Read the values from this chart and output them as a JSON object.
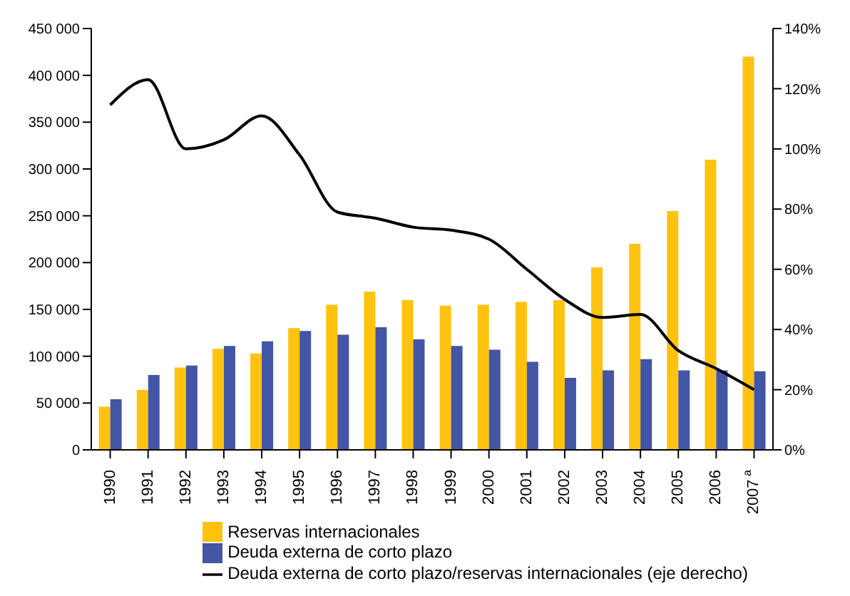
{
  "chart_data": {
    "type": "bar",
    "categories": [
      "1990",
      "1991",
      "1992",
      "1993",
      "1994",
      "1995",
      "1996",
      "1997",
      "1998",
      "1999",
      "2000",
      "2001",
      "2002",
      "2003",
      "2004",
      "2005",
      "2006",
      "2007$^{a}$"
    ],
    "series": [
      {
        "name": "Reservas internacionales",
        "color": "#ffc20e",
        "values": [
          46000,
          64000,
          88000,
          108000,
          103000,
          130000,
          155000,
          169000,
          160000,
          154000,
          155000,
          158000,
          160000,
          195000,
          220000,
          255000,
          310000,
          420000
        ]
      },
      {
        "name": "Deuda externa de corto plazo",
        "color": "#4355a5",
        "values": [
          54000,
          80000,
          90000,
          111000,
          116000,
          127000,
          123000,
          131000,
          118000,
          111000,
          107000,
          94000,
          77000,
          85000,
          97000,
          85000,
          85000,
          84000
        ]
      },
      {
        "name": "Deuda externa de corto plazo/reservas internacionales (eje derecho)",
        "type": "line",
        "axis": "y2",
        "color": "#000000",
        "values": [
          114.6,
          123,
          100,
          103,
          111,
          98,
          79,
          77,
          74,
          73,
          70,
          60,
          50,
          44,
          45,
          33,
          27,
          20
        ]
      }
    ],
    "ylim": [
      0,
      450000
    ],
    "yticks": [
      0,
      {
        "value": 50000,
        "label": "50 000"
      },
      {
        "value": 100000,
        "label": "100 000"
      },
      {
        "value": 150000,
        "label": "150 000"
      },
      {
        "value": 200000,
        "label": "200 000"
      },
      {
        "value": 250000,
        "label": "250 000"
      },
      {
        "value": 300000,
        "label": "300 000"
      },
      {
        "value": 350000,
        "label": "350 000"
      },
      {
        "value": 400000,
        "label": "400 000"
      },
      {
        "value": 450000,
        "label": "450 000"
      }
    ],
    "y2lim": [
      0,
      140
    ],
    "y2ticks": [
      {
        "value": 0,
        "label": "0%"
      },
      {
        "value": 20,
        "label": "20%"
      },
      {
        "value": 40,
        "label": "40%"
      },
      {
        "value": 60,
        "label": "60%"
      },
      {
        "value": 80,
        "label": "80%"
      },
      {
        "value": 100,
        "label": "100%"
      },
      {
        "value": 120,
        "label": "120%"
      },
      {
        "value": 140,
        "label": "140%"
      }
    ],
    "grid": false,
    "legend": "bottom",
    "marker": "none"
  }
}
